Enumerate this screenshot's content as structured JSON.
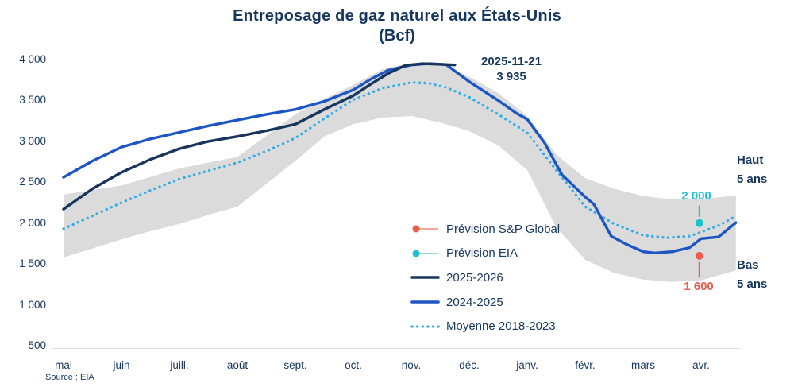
{
  "title": {
    "line1": "Entreposage de gaz naturel aux États-Unis",
    "line2": "(Bcf)"
  },
  "annotation": {
    "line1": "2025-11-21",
    "line2": "3 935"
  },
  "source": "Source : EIA",
  "band_labels": {
    "high_line1": "Haut",
    "high_line2": "5 ans",
    "low_line1": "Bas",
    "low_line2": "5 ans"
  },
  "colors": {
    "text_navy": "#16365d",
    "series_2025_2026": "#17365d",
    "series_2024_2025": "#1c55c4",
    "series_moyenne": "#33ade3",
    "forecast_eia": "#1ec0cd",
    "forecast_eia_line": "#8edde3",
    "forecast_sp": "#ee5c4d",
    "forecast_sp_line": "#f5a79e",
    "band_gray": "#dbdbdb",
    "axis_line": "#e1e1e1"
  },
  "legend": [
    {
      "label": "Prévision S&P Global",
      "type": "lollipop",
      "color": "#ee5c4d",
      "line_color": "#f5a79e"
    },
    {
      "label": "Prévision EIA",
      "type": "lollipop",
      "color": "#1ec0cd",
      "line_color": "#8edde3"
    },
    {
      "label": "2025-2026",
      "type": "line",
      "color": "#17365d"
    },
    {
      "label": "2024-2025",
      "type": "line",
      "color": "#1c55c4"
    },
    {
      "label": "Moyenne 2018-2023",
      "type": "dotted",
      "color": "#33ade3"
    }
  ],
  "forecasts": [
    {
      "name": "Prévision EIA",
      "label": "2 000",
      "value": 2000,
      "x_month": 10.97,
      "color": "#1ec0cd",
      "line_color": "#1ec0cd",
      "direction": "above"
    },
    {
      "name": "Prévision S&P Global",
      "label": "1 600",
      "value": 1600,
      "x_month": 10.97,
      "color": "#ee5c4d",
      "line_color": "#ee5c4d",
      "direction": "below"
    }
  ],
  "chart_data": {
    "type": "line",
    "title": "Entreposage de gaz naturel aux États-Unis (Bcf)",
    "xlabel": "",
    "ylabel": "Bcf",
    "ylim": [
      500,
      4000
    ],
    "grid": false,
    "legend_position": "inside-bottom-center",
    "x_categories": [
      "mai",
      "juin",
      "juill.",
      "août",
      "sept.",
      "oct.",
      "nov.",
      "déc.",
      "janv.",
      "févr.",
      "mars",
      "avr."
    ],
    "y_ticks": [
      "4 000",
      "3 500",
      "3 000",
      "2 500",
      "2 000",
      "1 500",
      "1 000",
      "500"
    ],
    "y_tick_values": [
      4000,
      3500,
      3000,
      2500,
      2000,
      1500,
      1000,
      500
    ],
    "annotation": {
      "text": "2025-11-21 : 3 935 Bcf",
      "x_month": 6.75,
      "value": 3935
    },
    "band": {
      "name": "Plage haut/bas 5 ans",
      "x": [
        0,
        0.5,
        1,
        1.5,
        2,
        2.5,
        3,
        3.5,
        4,
        4.5,
        5,
        5.5,
        6,
        6.5,
        7,
        7.5,
        8,
        8.5,
        9,
        9.5,
        10,
        10.5,
        11,
        11.6
      ],
      "top": [
        2350,
        2405,
        2460,
        2565,
        2670,
        2740,
        2810,
        3070,
        3330,
        3520,
        3690,
        3880,
        3955,
        3950,
        3790,
        3590,
        3310,
        2840,
        2550,
        2420,
        2330,
        2290,
        2290,
        2340
      ],
      "bottom": [
        1580,
        1690,
        1800,
        1900,
        1990,
        2100,
        2200,
        2480,
        2760,
        3060,
        3210,
        3290,
        3310,
        3230,
        3125,
        2950,
        2650,
        1950,
        1550,
        1390,
        1310,
        1280,
        1300,
        1420
      ]
    },
    "series": [
      {
        "name": "2025-2026",
        "style": "solid",
        "color": "#17365d",
        "x": [
          0,
          0.5,
          1,
          1.5,
          2,
          2.5,
          3,
          3.5,
          4,
          4.5,
          5,
          5.3,
          5.6,
          5.9,
          6.2,
          6.75
        ],
        "values": [
          2170,
          2420,
          2620,
          2780,
          2910,
          3000,
          3060,
          3130,
          3210,
          3390,
          3560,
          3700,
          3830,
          3930,
          3950,
          3935
        ]
      },
      {
        "name": "2024-2025",
        "style": "solid",
        "color": "#1c55c4",
        "x": [
          0,
          0.5,
          1,
          1.5,
          2,
          2.5,
          3,
          3.5,
          4,
          4.5,
          5,
          5.3,
          5.6,
          6,
          6.3,
          6.6,
          7,
          7.5,
          7.8,
          8,
          8.3,
          8.6,
          9,
          9.15,
          9.45,
          9.7,
          10,
          10.2,
          10.5,
          10.8,
          11,
          11.3,
          11.6
        ],
        "values": [
          2560,
          2760,
          2930,
          3030,
          3110,
          3190,
          3260,
          3330,
          3390,
          3490,
          3630,
          3760,
          3870,
          3935,
          3950,
          3940,
          3730,
          3500,
          3350,
          3270,
          2980,
          2590,
          2320,
          2230,
          1840,
          1745,
          1650,
          1635,
          1650,
          1700,
          1810,
          1830,
          2005
        ]
      },
      {
        "name": "Moyenne 2018-2023",
        "style": "dotted",
        "color": "#33ade3",
        "x": [
          0,
          0.5,
          1,
          1.5,
          2,
          2.5,
          3,
          3.5,
          4,
          4.5,
          5,
          5.5,
          6,
          6.3,
          6.6,
          7,
          7.5,
          8,
          8.5,
          9,
          9.5,
          10,
          10.4,
          10.8,
          11,
          11.3,
          11.6
        ],
        "values": [
          1930,
          2090,
          2250,
          2400,
          2540,
          2640,
          2740,
          2880,
          3040,
          3280,
          3510,
          3650,
          3720,
          3710,
          3660,
          3540,
          3330,
          3105,
          2650,
          2200,
          1990,
          1850,
          1820,
          1840,
          1890,
          1970,
          2085
        ]
      }
    ],
    "forecast_points": [
      {
        "name": "Prévision EIA",
        "value": 2000
      },
      {
        "name": "Prévision S&P Global",
        "value": 1600
      }
    ]
  }
}
